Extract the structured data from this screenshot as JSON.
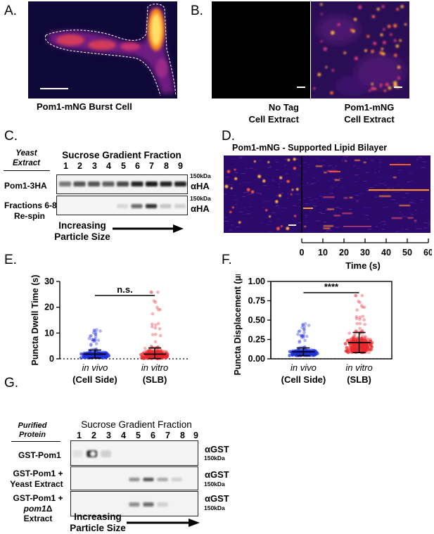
{
  "panels": {
    "A": {
      "letter": "A.",
      "caption": "Pom1-mNG Burst Cell"
    },
    "B": {
      "letter": "B.",
      "left_caption_1": "No Tag",
      "left_caption_2": "Cell Extract",
      "right_caption_1": "Pom1-mNG",
      "right_caption_2": "Cell Extract"
    },
    "C": {
      "letter": "C.",
      "source_1": "Yeast",
      "source_2": "Extract",
      "header": "Sucrose Gradient Fraction",
      "fractions": [
        "1",
        "2",
        "3",
        "4",
        "5",
        "6",
        "7",
        "8",
        "9"
      ],
      "row1_label": "Pom1-3HA",
      "row2_label_1": "Fractions 6-8",
      "row2_label_2": "Re-spin",
      "marker": "150kDa",
      "antibody": "αHA",
      "arrow_1": "Increasing",
      "arrow_2": "Particle Size"
    },
    "D": {
      "letter": "D.",
      "title": "Pom1-mNG - Supported Lipid Bilayer",
      "ticks": [
        "0",
        "10",
        "20",
        "30",
        "40",
        "50",
        "60"
      ],
      "xlabel": "Time (s)"
    },
    "E": {
      "letter": "E."
    },
    "F": {
      "letter": "F."
    },
    "G": {
      "letter": "G.",
      "source_1": "Purified",
      "source_2": "Protein",
      "header": "Sucrose Gradient Fraction",
      "fractions": [
        "1",
        "2",
        "3",
        "4",
        "5",
        "6",
        "7",
        "8",
        "9"
      ],
      "row1_label": "GST-Pom1",
      "row2_label_1": "GST-Pom1 +",
      "row2_label_2": "Yeast Extract",
      "row3_label_1": "GST-Pom1 +",
      "row3_label_2_italic": "pom1",
      "row3_label_2_rest": "Δ Extract",
      "marker": "150kDa",
      "antibody": "αGST",
      "arrow_1": "Increasing",
      "arrow_2": "Particle Size"
    }
  },
  "chart_data": [
    {
      "type": "scatter",
      "panel": "E",
      "ylabel": "Puncta Dwell Time (s)",
      "ylim": [
        0,
        30
      ],
      "yticks": [
        0,
        10,
        20,
        30
      ],
      "categories": [
        {
          "line1": "in vivo",
          "line2": "(Cell Side)",
          "color": "#1f2fdc"
        },
        {
          "line1": "in vitro",
          "line2": "(SLB)",
          "color": "#e8252a"
        }
      ],
      "series": [
        {
          "mean": 1.8,
          "sd_low": 0.3,
          "sd_high": 3.4,
          "max": 11.5
        },
        {
          "mean": 1.8,
          "sd_low": 0.1,
          "sd_high": 4.2,
          "max": 26
        }
      ],
      "significance": "n.s."
    },
    {
      "type": "scatter",
      "panel": "F",
      "ylabel": "Puncta Displacement (μm)",
      "ylim": [
        0,
        1.0
      ],
      "yticks": [
        "0.00",
        "0.25",
        "0.50",
        "0.75",
        "1.00"
      ],
      "categories": [
        {
          "line1": "in vivo",
          "line2": "(Cell Side)",
          "color": "#1f2fdc"
        },
        {
          "line1": "in vitro",
          "line2": "(SLB)",
          "color": "#e8252a"
        }
      ],
      "series": [
        {
          "mean": 0.09,
          "sd_low": 0.04,
          "sd_high": 0.14,
          "max": 0.46
        },
        {
          "mean": 0.21,
          "sd_low": 0.08,
          "sd_high": 0.34,
          "max": 0.82
        }
      ],
      "significance": "****"
    }
  ]
}
